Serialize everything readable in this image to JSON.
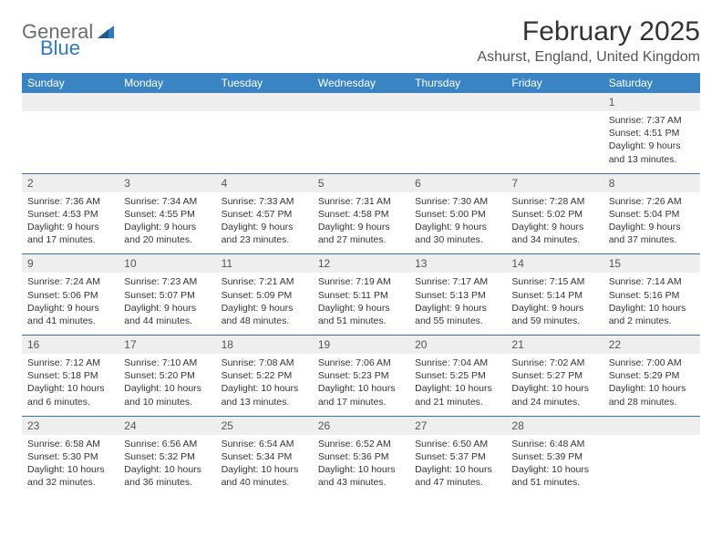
{
  "logo": {
    "word1": "General",
    "word2": "Blue"
  },
  "title": "February 2025",
  "location": "Ashurst, England, United Kingdom",
  "colors": {
    "header_bg": "#3b84c4",
    "header_text": "#ffffff",
    "daynum_bg": "#eeeeee",
    "row_border": "#3b6fa0",
    "logo_gray": "#6b6b6b",
    "logo_blue": "#2f78bd",
    "text": "#333333"
  },
  "weekdays": [
    "Sunday",
    "Monday",
    "Tuesday",
    "Wednesday",
    "Thursday",
    "Friday",
    "Saturday"
  ],
  "weeks": [
    [
      null,
      null,
      null,
      null,
      null,
      null,
      {
        "d": "1",
        "sr": "7:37 AM",
        "ss": "4:51 PM",
        "dl": "9 hours and 13 minutes."
      }
    ],
    [
      {
        "d": "2",
        "sr": "7:36 AM",
        "ss": "4:53 PM",
        "dl": "9 hours and 17 minutes."
      },
      {
        "d": "3",
        "sr": "7:34 AM",
        "ss": "4:55 PM",
        "dl": "9 hours and 20 minutes."
      },
      {
        "d": "4",
        "sr": "7:33 AM",
        "ss": "4:57 PM",
        "dl": "9 hours and 23 minutes."
      },
      {
        "d": "5",
        "sr": "7:31 AM",
        "ss": "4:58 PM",
        "dl": "9 hours and 27 minutes."
      },
      {
        "d": "6",
        "sr": "7:30 AM",
        "ss": "5:00 PM",
        "dl": "9 hours and 30 minutes."
      },
      {
        "d": "7",
        "sr": "7:28 AM",
        "ss": "5:02 PM",
        "dl": "9 hours and 34 minutes."
      },
      {
        "d": "8",
        "sr": "7:26 AM",
        "ss": "5:04 PM",
        "dl": "9 hours and 37 minutes."
      }
    ],
    [
      {
        "d": "9",
        "sr": "7:24 AM",
        "ss": "5:06 PM",
        "dl": "9 hours and 41 minutes."
      },
      {
        "d": "10",
        "sr": "7:23 AM",
        "ss": "5:07 PM",
        "dl": "9 hours and 44 minutes."
      },
      {
        "d": "11",
        "sr": "7:21 AM",
        "ss": "5:09 PM",
        "dl": "9 hours and 48 minutes."
      },
      {
        "d": "12",
        "sr": "7:19 AM",
        "ss": "5:11 PM",
        "dl": "9 hours and 51 minutes."
      },
      {
        "d": "13",
        "sr": "7:17 AM",
        "ss": "5:13 PM",
        "dl": "9 hours and 55 minutes."
      },
      {
        "d": "14",
        "sr": "7:15 AM",
        "ss": "5:14 PM",
        "dl": "9 hours and 59 minutes."
      },
      {
        "d": "15",
        "sr": "7:14 AM",
        "ss": "5:16 PM",
        "dl": "10 hours and 2 minutes."
      }
    ],
    [
      {
        "d": "16",
        "sr": "7:12 AM",
        "ss": "5:18 PM",
        "dl": "10 hours and 6 minutes."
      },
      {
        "d": "17",
        "sr": "7:10 AM",
        "ss": "5:20 PM",
        "dl": "10 hours and 10 minutes."
      },
      {
        "d": "18",
        "sr": "7:08 AM",
        "ss": "5:22 PM",
        "dl": "10 hours and 13 minutes."
      },
      {
        "d": "19",
        "sr": "7:06 AM",
        "ss": "5:23 PM",
        "dl": "10 hours and 17 minutes."
      },
      {
        "d": "20",
        "sr": "7:04 AM",
        "ss": "5:25 PM",
        "dl": "10 hours and 21 minutes."
      },
      {
        "d": "21",
        "sr": "7:02 AM",
        "ss": "5:27 PM",
        "dl": "10 hours and 24 minutes."
      },
      {
        "d": "22",
        "sr": "7:00 AM",
        "ss": "5:29 PM",
        "dl": "10 hours and 28 minutes."
      }
    ],
    [
      {
        "d": "23",
        "sr": "6:58 AM",
        "ss": "5:30 PM",
        "dl": "10 hours and 32 minutes."
      },
      {
        "d": "24",
        "sr": "6:56 AM",
        "ss": "5:32 PM",
        "dl": "10 hours and 36 minutes."
      },
      {
        "d": "25",
        "sr": "6:54 AM",
        "ss": "5:34 PM",
        "dl": "10 hours and 40 minutes."
      },
      {
        "d": "26",
        "sr": "6:52 AM",
        "ss": "5:36 PM",
        "dl": "10 hours and 43 minutes."
      },
      {
        "d": "27",
        "sr": "6:50 AM",
        "ss": "5:37 PM",
        "dl": "10 hours and 47 minutes."
      },
      {
        "d": "28",
        "sr": "6:48 AM",
        "ss": "5:39 PM",
        "dl": "10 hours and 51 minutes."
      },
      null
    ]
  ],
  "labels": {
    "sunrise": "Sunrise:",
    "sunset": "Sunset:",
    "daylight": "Daylight:"
  }
}
